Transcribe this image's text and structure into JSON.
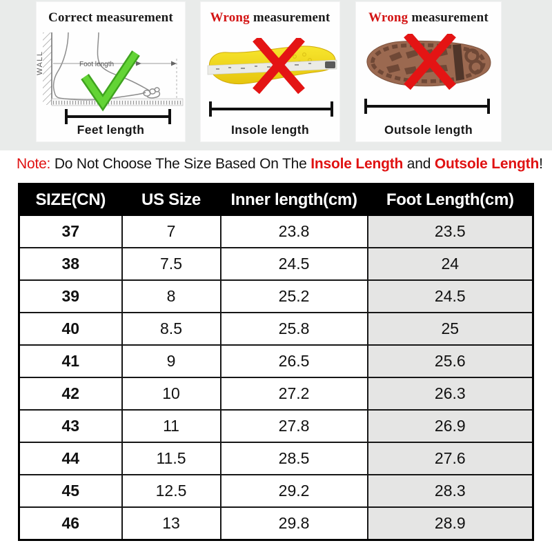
{
  "page": {
    "background": "#ffffff",
    "top_band_bg": "#e9ebea",
    "accent_red": "#e01212",
    "check_green": "#5ad32f",
    "cross_red": "#e41414"
  },
  "panels": [
    {
      "title_prefix": "Correct",
      "title_rest": " measurement",
      "wall_label": "WALL",
      "arrow_label": "Foot length",
      "bottom_label": "Feet length",
      "mark": "check"
    },
    {
      "title_prefix": "Wrong",
      "title_rest": " measurement",
      "bottom_label": "Insole length",
      "mark": "cross"
    },
    {
      "title_prefix": "Wrong",
      "title_rest": " measurement",
      "bottom_label": "Outsole length",
      "mark": "cross"
    }
  ],
  "note": {
    "prefix": "Note:",
    "body": " Do Not Choose The Size Based On The ",
    "insole": "Insole Length",
    "and": " and ",
    "outsole": "Outsole Length",
    "suffix": "!"
  },
  "table": {
    "headers": [
      "SIZE(CN)",
      "US Size",
      "Inner length(cm)",
      "Foot Length(cm)"
    ],
    "rows": [
      [
        "37",
        "7",
        "23.8",
        "23.5"
      ],
      [
        "38",
        "7.5",
        "24.5",
        "24"
      ],
      [
        "39",
        "8",
        "25.2",
        "24.5"
      ],
      [
        "40",
        "8.5",
        "25.8",
        "25"
      ],
      [
        "41",
        "9",
        "26.5",
        "25.6"
      ],
      [
        "42",
        "10",
        "27.2",
        "26.3"
      ],
      [
        "43",
        "11",
        "27.8",
        "26.9"
      ],
      [
        "44",
        "11.5",
        "28.5",
        "27.6"
      ],
      [
        "45",
        "12.5",
        "29.2",
        "28.3"
      ],
      [
        "46",
        "13",
        "29.8",
        "28.9"
      ]
    ],
    "header_bg": "#000000",
    "header_text_color": "#ffffff",
    "last_col_bg": "#e5e5e4"
  },
  "chart_data": {
    "type": "table",
    "columns": [
      "SIZE(CN)",
      "US Size",
      "Inner length(cm)",
      "Foot Length(cm)"
    ],
    "rows": [
      [
        37,
        7,
        23.8,
        23.5
      ],
      [
        38,
        7.5,
        24.5,
        24
      ],
      [
        39,
        8,
        25.2,
        24.5
      ],
      [
        40,
        8.5,
        25.8,
        25
      ],
      [
        41,
        9,
        26.5,
        25.6
      ],
      [
        42,
        10,
        27.2,
        26.3
      ],
      [
        43,
        11,
        27.8,
        26.9
      ],
      [
        44,
        11.5,
        28.5,
        27.6
      ],
      [
        45,
        12.5,
        29.2,
        28.3
      ],
      [
        46,
        13,
        29.8,
        28.9
      ]
    ]
  }
}
